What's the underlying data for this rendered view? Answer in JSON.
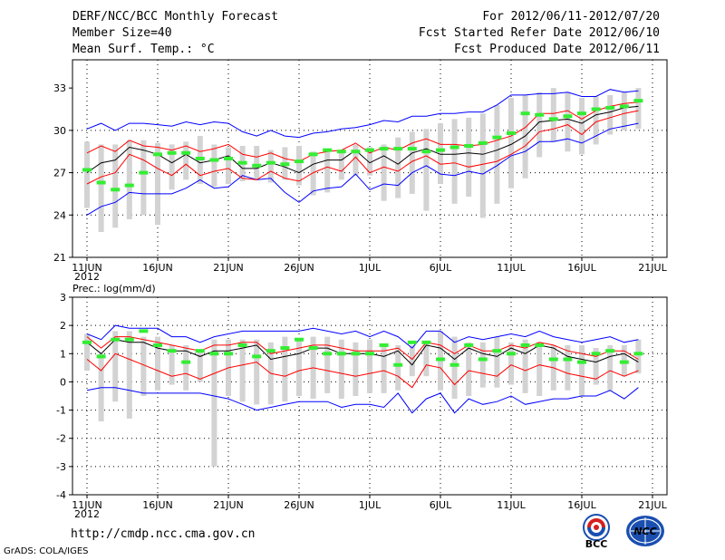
{
  "header": {
    "title": "DERF/NCC/BCC Monthly Forecast",
    "member_size": "Member Size=40",
    "variable": "Mean Surf. Temp.: °C",
    "forecast_period": "For 2012/06/11-2012/07/20",
    "refer_date": "Fcst Started Refer Date 2012/06/10",
    "produced_date": "Fcst Produced Date 2012/06/11"
  },
  "footer": {
    "url": "http://cmdp.ncc.cma.gov.cn",
    "credit": "GrADS: COLA/IGES",
    "logo_left": "BCC",
    "logo_right": "NCC"
  },
  "colors": {
    "box": "#d3d3d3",
    "ensemble_mean": "#000000",
    "spread": "#ff0000",
    "envelope": "#0000ff",
    "observed": "#33ee33"
  },
  "chart_data": [
    {
      "type": "line",
      "title": "Mean Surf. Temp.: °C",
      "xlabel": "",
      "ylabel": "",
      "ylim": [
        21,
        35
      ],
      "yticks": [
        21,
        24,
        27,
        30,
        33
      ],
      "day_count": 40,
      "xticks": [
        {
          "day": 0,
          "label": "11JUN"
        },
        {
          "day": 5,
          "label": "16JUN"
        },
        {
          "day": 10,
          "label": "21JUN"
        },
        {
          "day": 15,
          "label": "26JUN"
        },
        {
          "day": 20,
          "label": "1JUL"
        },
        {
          "day": 25,
          "label": "6JUL"
        },
        {
          "day": 30,
          "label": "11JUL"
        },
        {
          "day": 35,
          "label": "16JUL"
        },
        {
          "day": 40,
          "label": "21JUL"
        }
      ],
      "year_label": "2012",
      "grid": true,
      "series": [
        {
          "name": "box_top",
          "values": [
            29.2,
            29.0,
            29.0,
            29.3,
            29.3,
            29.1,
            29.0,
            29.2,
            29.6,
            29.0,
            28.8,
            28.9,
            28.9,
            28.6,
            28.8,
            28.9,
            28.5,
            28.6,
            28.5,
            29.0,
            28.8,
            29.0,
            29.5,
            29.9,
            30.1,
            30.5,
            30.8,
            30.9,
            31.2,
            31.8,
            32.3,
            32.5,
            32.7,
            33.0,
            32.7,
            32.3,
            32.4,
            32.5,
            32.7,
            33.0
          ]
        },
        {
          "name": "box_bottom",
          "values": [
            24.5,
            22.8,
            23.1,
            23.7,
            24.0,
            23.3,
            25.8,
            26.5,
            26.2,
            26.0,
            26.2,
            26.4,
            26.5,
            26.3,
            26.5,
            26.1,
            25.4,
            25.6,
            26.5,
            26.8,
            26.8,
            25.0,
            25.2,
            25.5,
            24.3,
            26.2,
            24.8,
            25.3,
            23.8,
            24.8,
            25.9,
            26.6,
            28.1,
            29.2,
            28.5,
            28.3,
            29.0,
            29.7,
            30.0,
            30.1
          ]
        },
        {
          "name": "obs",
          "values": [
            27.2,
            26.3,
            25.8,
            26.1,
            27.0,
            28.3,
            28.4,
            28.4,
            28.0,
            27.9,
            28.0,
            27.7,
            27.5,
            27.7,
            27.6,
            27.8,
            28.3,
            28.6,
            28.5,
            28.5,
            28.6,
            28.7,
            28.7,
            28.7,
            28.5,
            28.6,
            28.8,
            28.9,
            29.1,
            29.5,
            29.8,
            31.2,
            31.1,
            30.8,
            31.0,
            31.2,
            31.5,
            31.6,
            31.7,
            32.1
          ]
        },
        {
          "name": "mean",
          "values": [
            27.0,
            27.7,
            27.9,
            28.8,
            28.6,
            28.3,
            27.7,
            28.3,
            27.7,
            27.9,
            28.2,
            27.3,
            27.3,
            27.7,
            27.4,
            27.0,
            27.6,
            27.9,
            27.9,
            28.6,
            27.7,
            28.2,
            27.6,
            28.4,
            28.7,
            28.3,
            28.3,
            28.4,
            28.3,
            28.6,
            29.0,
            29.6,
            30.6,
            30.7,
            30.8,
            30.5,
            31.1,
            31.3,
            31.6,
            31.7
          ]
        },
        {
          "name": "upper",
          "values": [
            28.4,
            28.9,
            28.5,
            29.3,
            28.9,
            28.8,
            28.6,
            28.9,
            28.5,
            28.7,
            29.0,
            28.3,
            28.1,
            28.4,
            28.0,
            27.8,
            28.3,
            28.5,
            28.6,
            29.1,
            28.4,
            28.8,
            28.6,
            29.1,
            29.4,
            29.0,
            29.0,
            28.9,
            29.0,
            29.3,
            29.6,
            30.2,
            31.2,
            31.2,
            31.4,
            30.8,
            31.4,
            31.7,
            31.9,
            32.0
          ]
        },
        {
          "name": "lower",
          "values": [
            26.2,
            26.7,
            27.0,
            28.3,
            27.9,
            27.3,
            26.8,
            27.6,
            26.8,
            27.1,
            27.3,
            26.6,
            26.5,
            27.1,
            26.6,
            26.4,
            27.0,
            27.4,
            27.1,
            28.1,
            27.0,
            27.4,
            27.1,
            27.8,
            28.2,
            27.6,
            27.7,
            27.4,
            27.6,
            27.8,
            28.3,
            28.9,
            29.9,
            30.1,
            30.4,
            29.7,
            30.6,
            30.9,
            31.2,
            31.4
          ]
        },
        {
          "name": "env_max",
          "values": [
            30.1,
            30.5,
            30.0,
            30.5,
            30.5,
            30.4,
            30.3,
            30.6,
            30.4,
            30.6,
            30.5,
            29.9,
            29.6,
            30.0,
            29.6,
            29.5,
            29.8,
            29.9,
            30.1,
            30.2,
            30.4,
            30.7,
            30.6,
            31.0,
            31.0,
            31.2,
            31.2,
            31.3,
            31.3,
            31.8,
            32.5,
            32.5,
            32.6,
            32.6,
            32.7,
            32.4,
            32.4,
            32.9,
            32.7,
            32.8
          ]
        },
        {
          "name": "env_min",
          "values": [
            24.0,
            24.6,
            24.9,
            25.6,
            25.5,
            25.5,
            25.5,
            25.9,
            26.5,
            25.9,
            26.0,
            26.8,
            26.5,
            26.6,
            25.6,
            24.9,
            25.7,
            25.9,
            26.0,
            26.9,
            25.8,
            26.2,
            26.1,
            27.0,
            27.5,
            26.9,
            26.8,
            27.1,
            26.9,
            27.5,
            28.2,
            28.5,
            29.2,
            29.2,
            29.4,
            29.1,
            29.6,
            30.1,
            30.3,
            30.5
          ]
        }
      ]
    },
    {
      "type": "line",
      "title": "Prec.: log(mm/d)",
      "xlabel": "",
      "ylabel": "",
      "ylim": [
        -4,
        3
      ],
      "yticks": [
        -4,
        -3,
        -2,
        -1,
        0,
        1,
        2,
        3
      ],
      "day_count": 40,
      "xticks": [
        {
          "day": 0,
          "label": "11JUN"
        },
        {
          "day": 5,
          "label": "16JUN"
        },
        {
          "day": 10,
          "label": "21JUN"
        },
        {
          "day": 15,
          "label": "26JUN"
        },
        {
          "day": 20,
          "label": "1JUL"
        },
        {
          "day": 25,
          "label": "6JUL"
        },
        {
          "day": 30,
          "label": "11JUL"
        },
        {
          "day": 35,
          "label": "16JUL"
        },
        {
          "day": 40,
          "label": "21JUL"
        }
      ],
      "year_label": "2012",
      "grid": true,
      "series": [
        {
          "name": "box_top",
          "values": [
            1.7,
            1.0,
            1.8,
            1.8,
            1.6,
            1.6,
            1.3,
            1.3,
            1.1,
            1.5,
            1.5,
            1.5,
            1.5,
            1.4,
            1.6,
            1.5,
            1.6,
            1.6,
            1.5,
            1.4,
            1.5,
            1.3,
            1.3,
            1.3,
            1.4,
            1.8,
            1.6,
            1.4,
            1.4,
            1.6,
            1.4,
            1.5,
            1.4,
            1.3,
            1.3,
            1.3,
            1.2,
            1.3,
            1.3,
            1.5
          ]
        },
        {
          "name": "box_bottom",
          "values": [
            0.4,
            -1.4,
            -0.7,
            -1.3,
            -0.5,
            -0.3,
            -0.1,
            -0.3,
            0.0,
            -3.0,
            -0.5,
            -0.7,
            -0.8,
            -0.8,
            -0.7,
            -0.5,
            -0.6,
            -0.4,
            -0.6,
            -0.5,
            -0.4,
            -0.4,
            -0.3,
            0.2,
            0.2,
            -0.3,
            -0.6,
            -0.5,
            -0.2,
            -0.2,
            -0.1,
            -0.4,
            -0.5,
            -0.3,
            -0.3,
            -0.5,
            -0.1,
            -0.3,
            0.2,
            0.3
          ]
        },
        {
          "name": "obs",
          "values": [
            1.4,
            0.9,
            1.5,
            1.5,
            1.8,
            1.3,
            1.1,
            0.7,
            1.1,
            1.0,
            1.0,
            1.3,
            0.9,
            1.1,
            1.2,
            1.5,
            1.2,
            1.0,
            1.0,
            1.0,
            1.0,
            1.3,
            0.6,
            1.4,
            1.4,
            0.8,
            0.6,
            1.3,
            0.8,
            1.1,
            1.0,
            1.3,
            1.3,
            0.8,
            0.8,
            0.7,
            1.0,
            1.1,
            0.7,
            1.0
          ]
        },
        {
          "name": "mean",
          "values": [
            1.4,
            1.0,
            1.5,
            1.4,
            1.4,
            1.2,
            1.1,
            1.1,
            0.9,
            1.1,
            1.1,
            1.2,
            1.3,
            0.8,
            0.9,
            1.0,
            1.2,
            1.2,
            1.0,
            1.0,
            1.0,
            0.9,
            1.1,
            0.6,
            1.3,
            1.2,
            0.8,
            1.2,
            1.0,
            0.9,
            1.2,
            1.0,
            1.3,
            1.2,
            0.9,
            0.8,
            0.7,
            0.9,
            1.0,
            0.7
          ]
        },
        {
          "name": "upper",
          "values": [
            1.6,
            1.2,
            1.6,
            1.6,
            1.5,
            1.4,
            1.3,
            1.2,
            1.1,
            1.3,
            1.3,
            1.4,
            1.4,
            1.0,
            1.1,
            1.2,
            1.3,
            1.3,
            1.2,
            1.1,
            1.1,
            1.1,
            1.2,
            0.8,
            1.4,
            1.3,
            1.0,
            1.3,
            1.1,
            1.1,
            1.3,
            1.2,
            1.4,
            1.3,
            1.1,
            1.0,
            0.9,
            1.1,
            1.1,
            0.8
          ]
        },
        {
          "name": "lower",
          "values": [
            0.8,
            0.4,
            1.0,
            0.8,
            0.6,
            0.4,
            0.2,
            0.3,
            0.1,
            0.3,
            0.5,
            0.6,
            0.7,
            0.3,
            0.2,
            0.4,
            0.5,
            0.4,
            0.3,
            0.2,
            0.3,
            0.4,
            0.2,
            -0.2,
            0.6,
            0.5,
            -0.1,
            0.4,
            0.3,
            0.2,
            0.6,
            0.4,
            0.6,
            0.5,
            0.3,
            0.2,
            0.1,
            0.4,
            0.2,
            0.4
          ]
        },
        {
          "name": "env_max",
          "values": [
            1.7,
            1.5,
            2.0,
            1.9,
            1.9,
            1.9,
            1.6,
            1.6,
            1.4,
            1.6,
            1.7,
            1.8,
            1.8,
            1.8,
            1.8,
            1.8,
            1.9,
            1.8,
            1.7,
            1.8,
            1.6,
            1.8,
            1.6,
            1.2,
            1.8,
            1.8,
            1.4,
            1.6,
            1.5,
            1.6,
            1.7,
            1.6,
            1.8,
            1.6,
            1.5,
            1.4,
            1.5,
            1.6,
            1.4,
            1.5
          ]
        },
        {
          "name": "env_min",
          "values": [
            -0.3,
            -0.2,
            -0.2,
            -0.3,
            -0.4,
            -0.4,
            -0.4,
            -0.4,
            -0.4,
            -0.5,
            -0.6,
            -0.8,
            -1.0,
            -0.9,
            -0.8,
            -0.7,
            -0.7,
            -0.7,
            -0.9,
            -0.8,
            -0.8,
            -0.9,
            -0.4,
            -1.1,
            -0.6,
            -0.4,
            -1.1,
            -0.6,
            -0.8,
            -0.7,
            -0.5,
            -0.8,
            -0.7,
            -0.6,
            -0.6,
            -0.5,
            -0.5,
            -0.3,
            -0.6,
            -0.2
          ]
        }
      ]
    }
  ]
}
